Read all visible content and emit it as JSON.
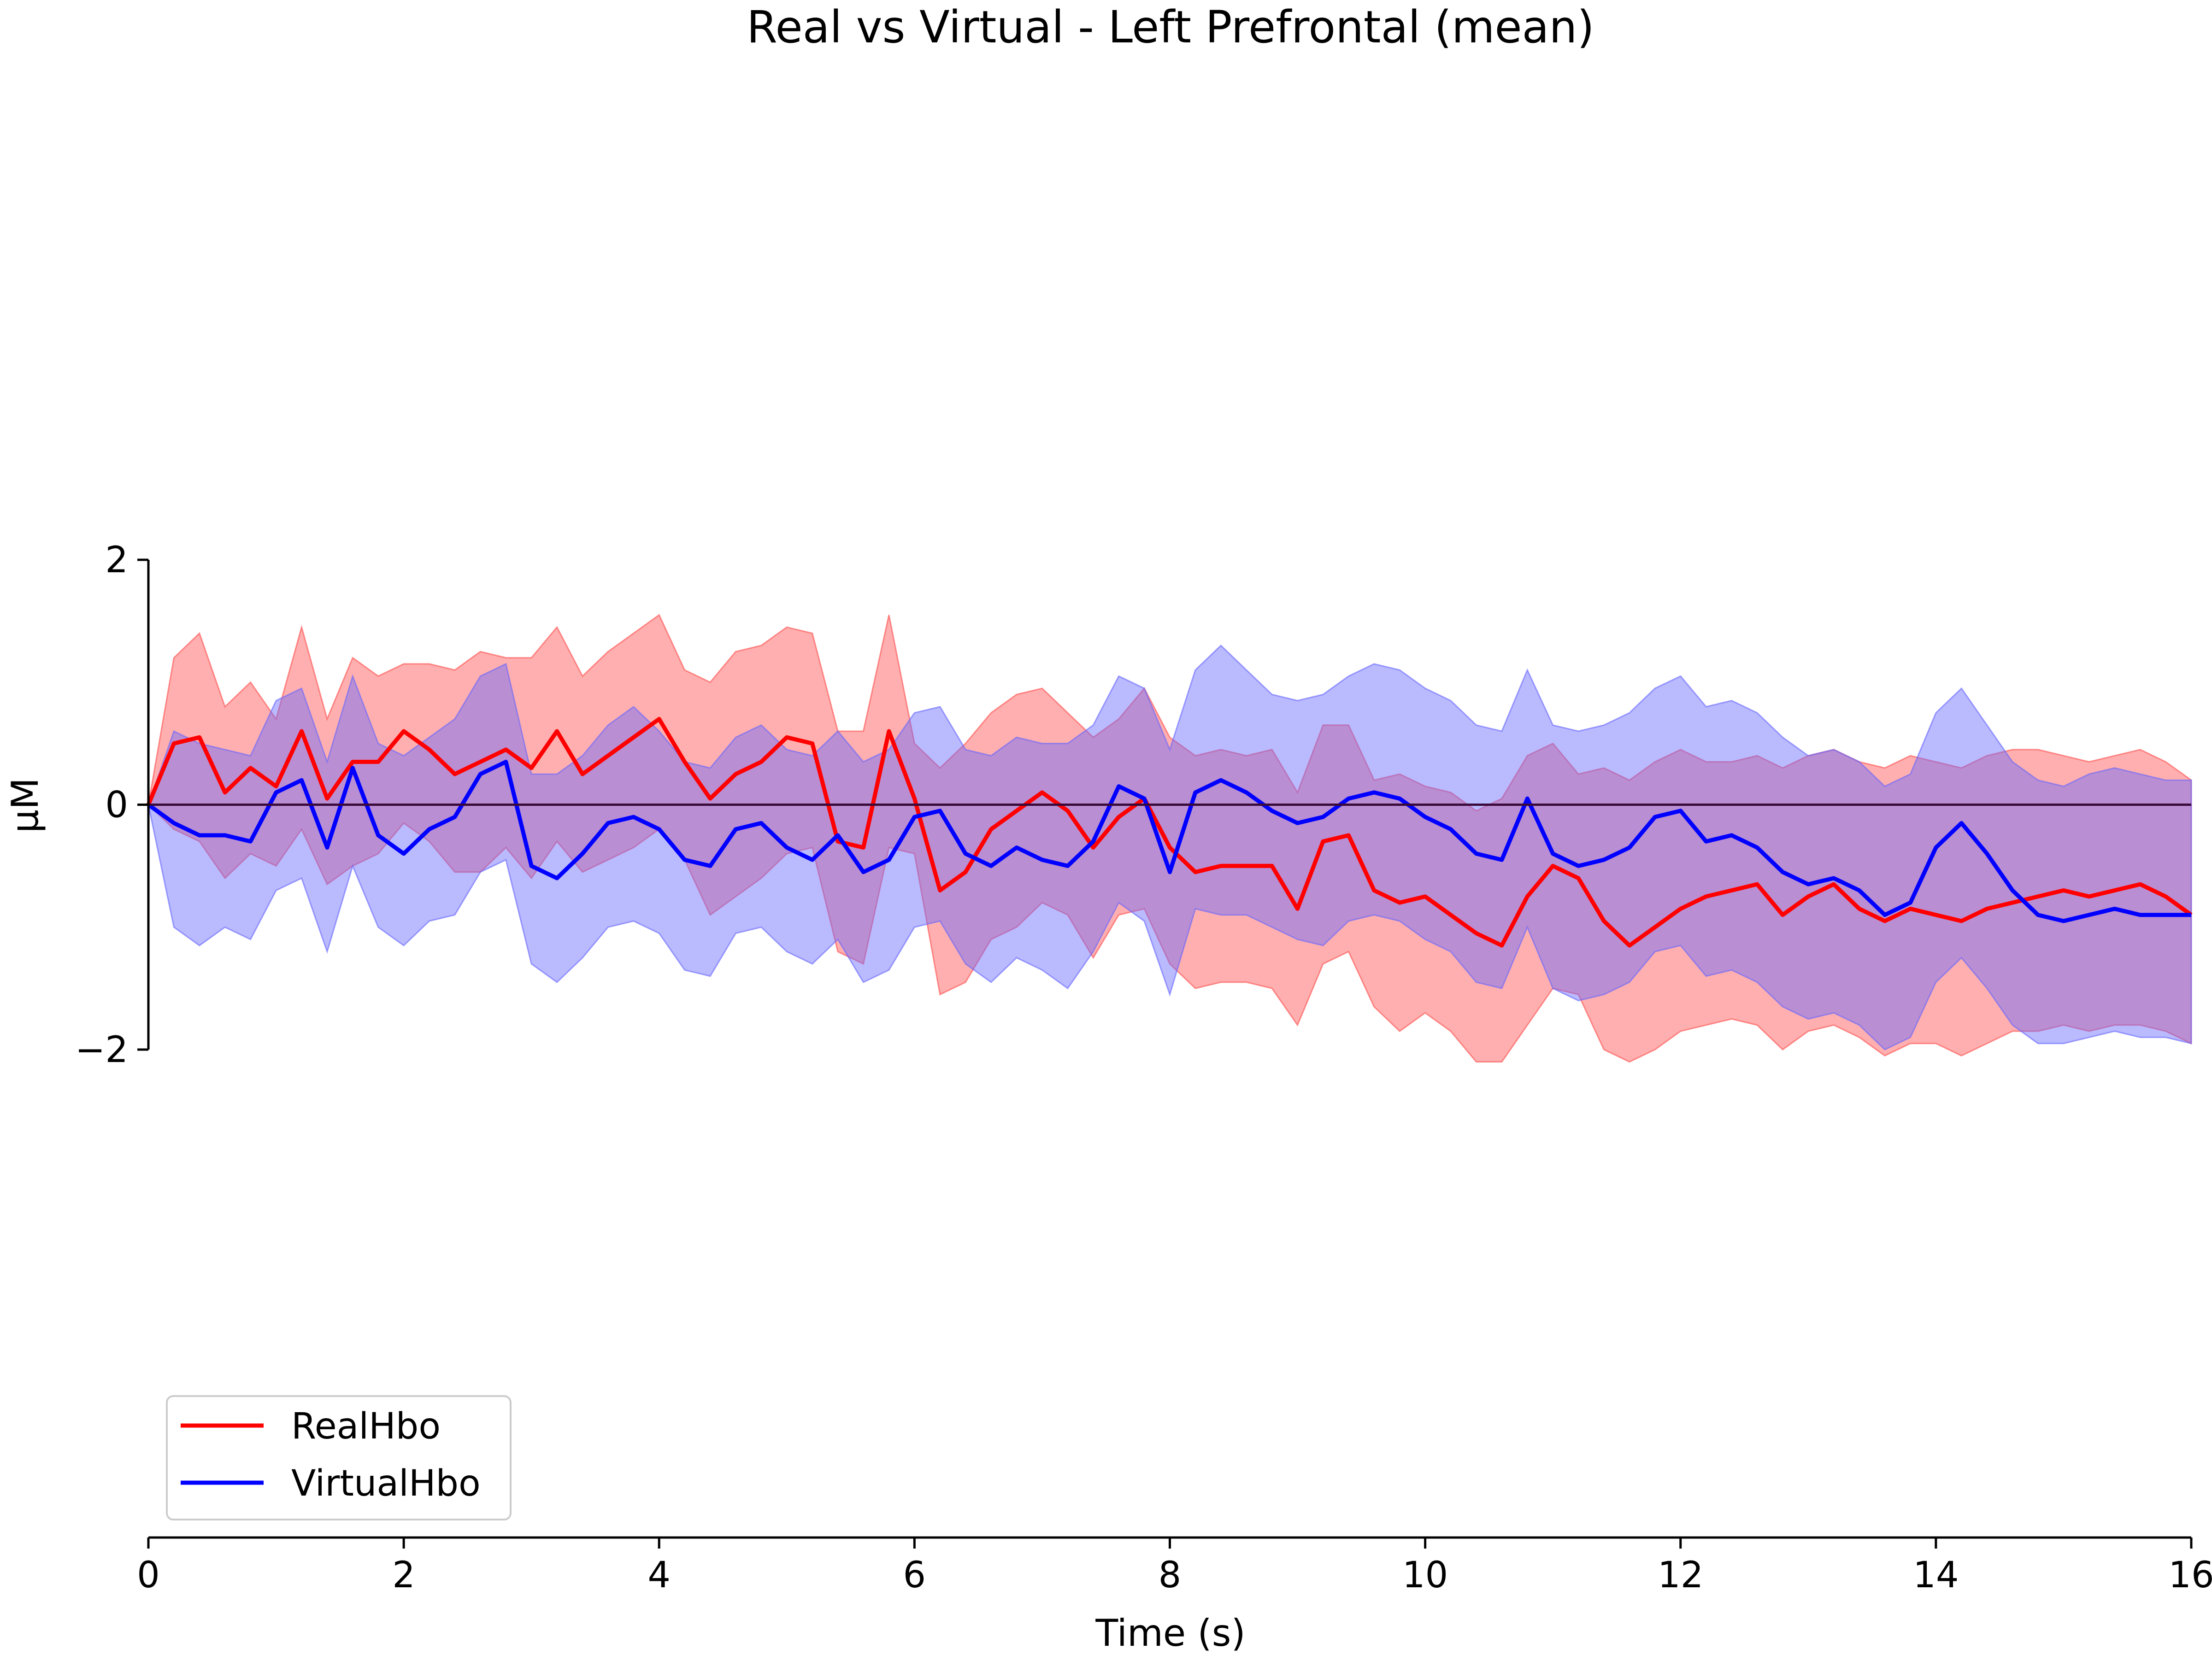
{
  "chart_data": {
    "type": "line",
    "title": "Real vs Virtual - Left Prefrontal (mean)",
    "xlabel": "Time (s)",
    "ylabel": "μM",
    "xlim": [
      0,
      16
    ],
    "ylim": [
      -2,
      2
    ],
    "x_ticks": [
      0,
      2,
      4,
      6,
      8,
      10,
      12,
      14,
      16
    ],
    "x_tick_labels": [
      "0",
      "2",
      "4",
      "6",
      "8",
      "10",
      "12",
      "14",
      "16"
    ],
    "y_ticks": [
      -2,
      0,
      2
    ],
    "y_tick_labels": [
      "−2",
      "0",
      "2"
    ],
    "reference_line": 0,
    "grid": false,
    "legend_position": "lower-left",
    "x_anchor": [
      0,
      0.2,
      0.4,
      0.6,
      0.8,
      1.0,
      1.2,
      1.4,
      1.6,
      1.8,
      2.0,
      2.2,
      2.4,
      2.6,
      2.8,
      3.0,
      3.2,
      3.4,
      3.6,
      3.8,
      4.0,
      4.2,
      4.4,
      4.6,
      4.8,
      5.0,
      5.2,
      5.4,
      5.6,
      5.8,
      6.0,
      6.2,
      6.4,
      6.6,
      6.8,
      7.0,
      7.2,
      7.4,
      7.6,
      7.8,
      8.0,
      8.2,
      8.4,
      8.6,
      8.8,
      9.0,
      9.2,
      9.4,
      9.6,
      9.8,
      10.0,
      10.2,
      10.4,
      10.6,
      10.8,
      11.0,
      11.2,
      11.4,
      11.6,
      11.8,
      12.0,
      12.2,
      12.4,
      12.6,
      12.8,
      13.0,
      13.2,
      13.4,
      13.6,
      13.8,
      14.0,
      14.2,
      14.4,
      14.6,
      14.8,
      15.0,
      15.2,
      15.4,
      15.6,
      15.8,
      16.0
    ],
    "series": [
      {
        "name": "RealHbo",
        "color": "#ff0000",
        "band_color": "#ff4d4d",
        "mean": [
          0,
          0.5,
          0.55,
          0.1,
          0.3,
          0.15,
          0.6,
          0.05,
          0.35,
          0.35,
          0.6,
          0.45,
          0.25,
          0.35,
          0.45,
          0.3,
          0.6,
          0.25,
          0.4,
          0.55,
          0.7,
          0.35,
          0.05,
          0.25,
          0.35,
          0.55,
          0.5,
          -0.3,
          -0.35,
          0.6,
          0.05,
          -0.7,
          -0.55,
          -0.2,
          -0.05,
          0.1,
          -0.05,
          -0.35,
          -0.1,
          0.05,
          -0.35,
          -0.55,
          -0.5,
          -0.5,
          -0.5,
          -0.85,
          -0.3,
          -0.25,
          -0.7,
          -0.8,
          -0.75,
          -0.9,
          -1.05,
          -1.15,
          -0.75,
          -0.5,
          -0.6,
          -0.95,
          -1.15,
          -1.0,
          -0.85,
          -0.75,
          -0.7,
          -0.65,
          -0.9,
          -0.75,
          -0.65,
          -0.85,
          -0.95,
          -0.85,
          -0.9,
          -0.95,
          -0.85,
          -0.8,
          -0.75,
          -0.7,
          -0.75,
          -0.7,
          -0.65,
          -0.75,
          -0.9
        ],
        "upper": [
          0,
          1.2,
          1.4,
          0.8,
          1.0,
          0.7,
          1.45,
          0.7,
          1.2,
          1.05,
          1.15,
          1.15,
          1.1,
          1.25,
          1.2,
          1.2,
          1.45,
          1.05,
          1.25,
          1.4,
          1.55,
          1.1,
          1.0,
          1.25,
          1.3,
          1.45,
          1.4,
          0.6,
          0.6,
          1.55,
          0.5,
          0.3,
          0.5,
          0.75,
          0.9,
          0.95,
          0.75,
          0.55,
          0.7,
          0.95,
          0.55,
          0.4,
          0.45,
          0.4,
          0.45,
          0.1,
          0.65,
          0.65,
          0.2,
          0.25,
          0.15,
          0.1,
          -0.05,
          0.05,
          0.4,
          0.5,
          0.25,
          0.3,
          0.2,
          0.35,
          0.45,
          0.35,
          0.35,
          0.4,
          0.3,
          0.4,
          0.45,
          0.35,
          0.3,
          0.4,
          0.35,
          0.3,
          0.4,
          0.45,
          0.45,
          0.4,
          0.35,
          0.4,
          0.45,
          0.35,
          0.2
        ],
        "lower": [
          0,
          -0.2,
          -0.3,
          -0.6,
          -0.4,
          -0.5,
          -0.2,
          -0.65,
          -0.5,
          -0.4,
          -0.15,
          -0.3,
          -0.55,
          -0.55,
          -0.35,
          -0.6,
          -0.3,
          -0.55,
          -0.45,
          -0.35,
          -0.2,
          -0.45,
          -0.9,
          -0.75,
          -0.6,
          -0.4,
          -0.35,
          -1.2,
          -1.3,
          -0.35,
          -0.4,
          -1.55,
          -1.45,
          -1.1,
          -1.0,
          -0.8,
          -0.9,
          -1.25,
          -0.9,
          -0.85,
          -1.3,
          -1.5,
          -1.45,
          -1.45,
          -1.5,
          -1.8,
          -1.3,
          -1.2,
          -1.65,
          -1.85,
          -1.7,
          -1.85,
          -2.1,
          -2.1,
          -1.8,
          -1.5,
          -1.55,
          -2.0,
          -2.1,
          -2.0,
          -1.85,
          -1.8,
          -1.75,
          -1.8,
          -2.0,
          -1.85,
          -1.8,
          -1.9,
          -2.05,
          -1.95,
          -1.95,
          -2.05,
          -1.95,
          -1.85,
          -1.85,
          -1.8,
          -1.85,
          -1.8,
          -1.8,
          -1.85,
          -1.95
        ]
      },
      {
        "name": "VirtualHbo",
        "color": "#0000ff",
        "band_color": "#6666ff",
        "mean": [
          0,
          -0.15,
          -0.25,
          -0.25,
          -0.3,
          0.1,
          0.2,
          -0.35,
          0.3,
          -0.25,
          -0.4,
          -0.2,
          -0.1,
          0.25,
          0.35,
          -0.5,
          -0.6,
          -0.4,
          -0.15,
          -0.1,
          -0.2,
          -0.45,
          -0.5,
          -0.2,
          -0.15,
          -0.35,
          -0.45,
          -0.25,
          -0.55,
          -0.45,
          -0.1,
          -0.05,
          -0.4,
          -0.5,
          -0.35,
          -0.45,
          -0.5,
          -0.3,
          0.15,
          0.05,
          -0.55,
          0.1,
          0.2,
          0.1,
          -0.05,
          -0.15,
          -0.1,
          0.05,
          0.1,
          0.05,
          -0.1,
          -0.2,
          -0.4,
          -0.45,
          0.05,
          -0.4,
          -0.5,
          -0.45,
          -0.35,
          -0.1,
          -0.05,
          -0.3,
          -0.25,
          -0.35,
          -0.55,
          -0.65,
          -0.6,
          -0.7,
          -0.9,
          -0.8,
          -0.35,
          -0.15,
          -0.4,
          -0.7,
          -0.9,
          -0.95,
          -0.9,
          -0.85,
          -0.9,
          -0.9,
          -0.9
        ],
        "upper": [
          0,
          0.6,
          0.5,
          0.45,
          0.4,
          0.85,
          0.95,
          0.35,
          1.05,
          0.5,
          0.4,
          0.55,
          0.7,
          1.05,
          1.15,
          0.25,
          0.25,
          0.4,
          0.65,
          0.8,
          0.6,
          0.35,
          0.3,
          0.55,
          0.65,
          0.45,
          0.4,
          0.6,
          0.35,
          0.45,
          0.75,
          0.8,
          0.45,
          0.4,
          0.55,
          0.5,
          0.5,
          0.65,
          1.05,
          0.95,
          0.45,
          1.1,
          1.3,
          1.1,
          0.9,
          0.85,
          0.9,
          1.05,
          1.15,
          1.1,
          0.95,
          0.85,
          0.65,
          0.6,
          1.1,
          0.65,
          0.6,
          0.65,
          0.75,
          0.95,
          1.05,
          0.8,
          0.85,
          0.75,
          0.55,
          0.4,
          0.45,
          0.35,
          0.15,
          0.25,
          0.75,
          0.95,
          0.65,
          0.35,
          0.2,
          0.15,
          0.25,
          0.3,
          0.25,
          0.2,
          0.2
        ],
        "lower": [
          0,
          -1.0,
          -1.15,
          -1.0,
          -1.1,
          -0.7,
          -0.6,
          -1.2,
          -0.5,
          -1.0,
          -1.15,
          -0.95,
          -0.9,
          -0.55,
          -0.45,
          -1.3,
          -1.45,
          -1.25,
          -1.0,
          -0.95,
          -1.05,
          -1.35,
          -1.4,
          -1.05,
          -1.0,
          -1.2,
          -1.3,
          -1.1,
          -1.45,
          -1.35,
          -1.0,
          -0.95,
          -1.3,
          -1.45,
          -1.25,
          -1.35,
          -1.5,
          -1.2,
          -0.8,
          -0.95,
          -1.55,
          -0.85,
          -0.9,
          -0.9,
          -1.0,
          -1.1,
          -1.15,
          -0.95,
          -0.9,
          -0.95,
          -1.1,
          -1.2,
          -1.45,
          -1.5,
          -1.0,
          -1.5,
          -1.6,
          -1.55,
          -1.45,
          -1.2,
          -1.15,
          -1.4,
          -1.35,
          -1.45,
          -1.65,
          -1.75,
          -1.7,
          -1.8,
          -2.0,
          -1.9,
          -1.45,
          -1.25,
          -1.5,
          -1.8,
          -1.95,
          -1.95,
          -1.9,
          -1.85,
          -1.9,
          -1.9,
          -1.95
        ]
      }
    ]
  }
}
